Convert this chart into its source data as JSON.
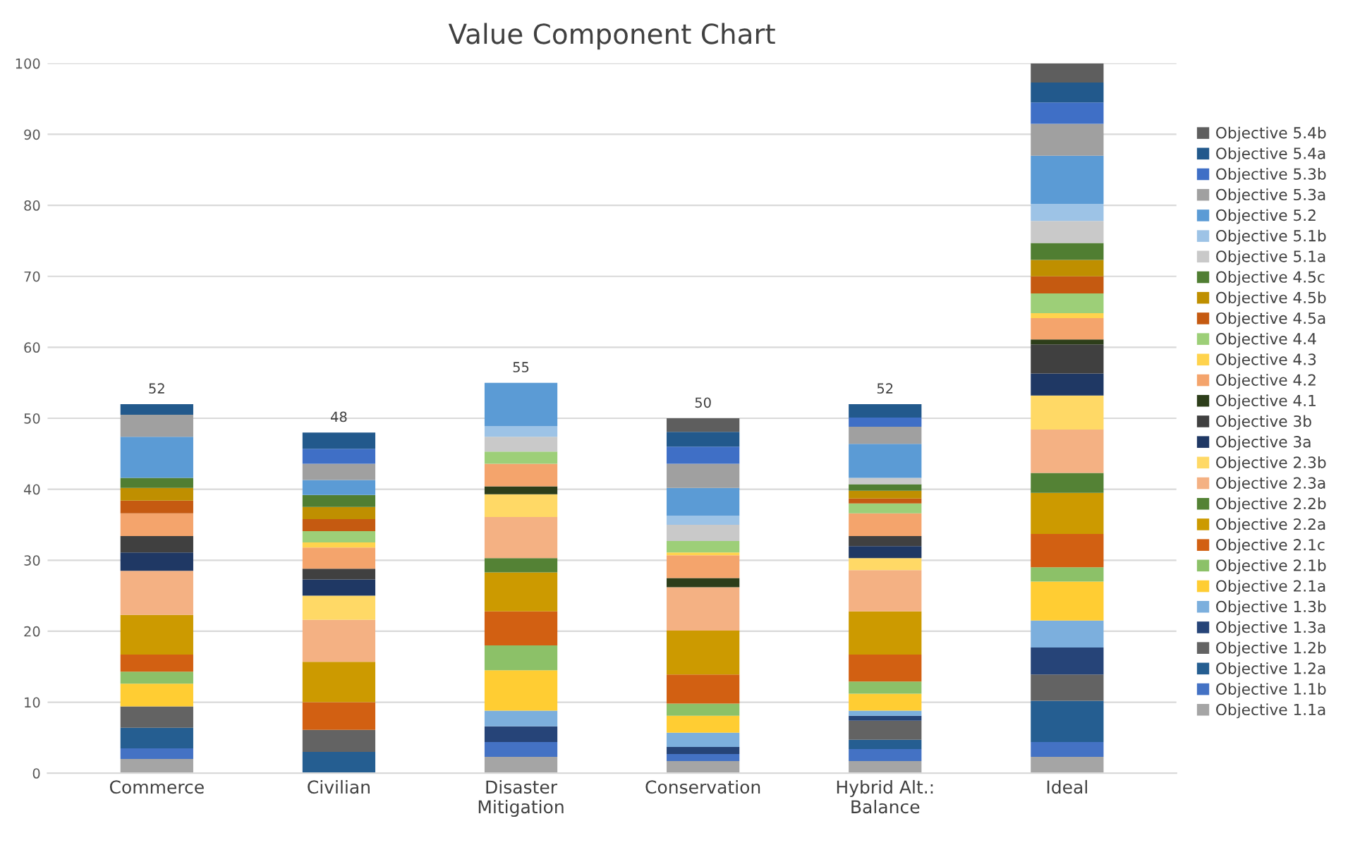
{
  "chart_data": {
    "type": "bar",
    "title": "Value Component Chart",
    "stacked": true,
    "categories": [
      "Commerce",
      "Civilian",
      "Disaster\nMitigation",
      "Conservation",
      "Hybrid Alt.:\nBalance",
      "Ideal"
    ],
    "ylim": [
      0,
      100
    ],
    "yticks": [
      0,
      10,
      20,
      30,
      40,
      50,
      60,
      70,
      80,
      90,
      100
    ],
    "grid": "y",
    "legend": "right",
    "totals": [
      "52",
      "48",
      "55",
      "50",
      "52",
      null
    ],
    "series": [
      {
        "name": "Objective 1.1a",
        "color": "#a5a5a5",
        "values": [
          2.0,
          0,
          2.3,
          1.7,
          1.7,
          2.3
        ]
      },
      {
        "name": "Objective 1.1b",
        "color": "#4472c4",
        "values": [
          1.5,
          0,
          2.1,
          1.0,
          1.7,
          2.1
        ]
      },
      {
        "name": "Objective 1.2a",
        "color": "#255e91",
        "values": [
          2.9,
          3.0,
          0,
          0,
          1.3,
          5.8
        ]
      },
      {
        "name": "Objective 1.2b",
        "color": "#636363",
        "values": [
          3.0,
          3.1,
          0,
          0,
          2.7,
          3.7
        ]
      },
      {
        "name": "Objective 1.3a",
        "color": "#264478",
        "values": [
          0,
          0,
          2.2,
          1.0,
          0.7,
          3.8
        ]
      },
      {
        "name": "Objective 1.3b",
        "color": "#7cafdd",
        "values": [
          0,
          0,
          2.2,
          2.0,
          0.7,
          3.8
        ]
      },
      {
        "name": "Objective 2.1a",
        "color": "#ffcd33",
        "values": [
          3.2,
          0,
          5.7,
          2.4,
          2.4,
          5.5
        ]
      },
      {
        "name": "Objective 2.1b",
        "color": "#8cc168",
        "values": [
          1.7,
          0,
          3.5,
          1.7,
          1.7,
          2.0
        ]
      },
      {
        "name": "Objective 2.1c",
        "color": "#d26012",
        "values": [
          2.4,
          3.9,
          4.8,
          4.1,
          3.8,
          4.7
        ]
      },
      {
        "name": "Objective 2.2a",
        "color": "#cc9a00",
        "values": [
          5.6,
          5.7,
          5.5,
          6.2,
          6.1,
          5.8
        ]
      },
      {
        "name": "Objective 2.2b",
        "color": "#548235",
        "values": [
          0,
          0,
          2.0,
          0,
          0,
          2.8
        ]
      },
      {
        "name": "Objective 2.3a",
        "color": "#f4b183",
        "values": [
          6.2,
          5.9,
          5.8,
          6.1,
          5.8,
          6.1
        ]
      },
      {
        "name": "Objective 2.3b",
        "color": "#ffd966",
        "values": [
          0,
          3.4,
          3.2,
          0,
          1.7,
          4.8
        ]
      },
      {
        "name": "Objective 3a",
        "color": "#1f3864",
        "values": [
          2.6,
          2.3,
          0,
          0,
          1.7,
          3.1
        ]
      },
      {
        "name": "Objective 3b",
        "color": "#404040",
        "values": [
          2.3,
          1.5,
          0,
          0,
          1.4,
          4.1
        ]
      },
      {
        "name": "Objective 4.1",
        "color": "#2d3e1a",
        "values": [
          0,
          0,
          1.1,
          1.3,
          0,
          0.7
        ]
      },
      {
        "name": "Objective 4.2",
        "color": "#f4a46c",
        "values": [
          3.2,
          3.0,
          3.2,
          3.2,
          3.2,
          3.0
        ]
      },
      {
        "name": "Objective 4.3",
        "color": "#ffd34d",
        "values": [
          0,
          0.7,
          0,
          0.4,
          0,
          0.7
        ]
      },
      {
        "name": "Objective 4.4",
        "color": "#9dcf78",
        "values": [
          0,
          1.6,
          1.7,
          1.6,
          1.4,
          2.8
        ]
      },
      {
        "name": "Objective 4.5a",
        "color": "#c55a11",
        "values": [
          1.8,
          1.7,
          0,
          0,
          0.7,
          2.4
        ]
      },
      {
        "name": "Objective 4.5b",
        "color": "#bf8f00",
        "values": [
          1.8,
          1.7,
          0,
          0,
          1.1,
          2.3
        ]
      },
      {
        "name": "Objective 4.5c",
        "color": "#507e32",
        "values": [
          1.4,
          1.7,
          0,
          0,
          0.9,
          2.4
        ]
      },
      {
        "name": "Objective 5.1a",
        "color": "#c9c9c9",
        "values": [
          0,
          0,
          2.1,
          2.3,
          0.9,
          3.1
        ]
      },
      {
        "name": "Objective 5.1b",
        "color": "#9dc3e6",
        "values": [
          0,
          0,
          1.5,
          1.3,
          0,
          2.4
        ]
      },
      {
        "name": "Objective 5.2",
        "color": "#5b9bd5",
        "values": [
          5.8,
          2.1,
          6.1,
          3.9,
          4.8,
          6.8
        ]
      },
      {
        "name": "Objective 5.3a",
        "color": "#a0a0a0",
        "values": [
          3.1,
          2.3,
          0,
          3.4,
          2.4,
          4.5
        ]
      },
      {
        "name": "Objective 5.3b",
        "color": "#3f6fc6",
        "values": [
          0,
          2.1,
          0,
          2.4,
          1.3,
          3.0
        ]
      },
      {
        "name": "Objective 5.4a",
        "color": "#22598c",
        "values": [
          1.5,
          2.3,
          0,
          2.1,
          1.9,
          2.8
        ]
      },
      {
        "name": "Objective 5.4b",
        "color": "#5e5e5e",
        "values": [
          0,
          0,
          0,
          1.9,
          0,
          2.7
        ]
      }
    ]
  }
}
